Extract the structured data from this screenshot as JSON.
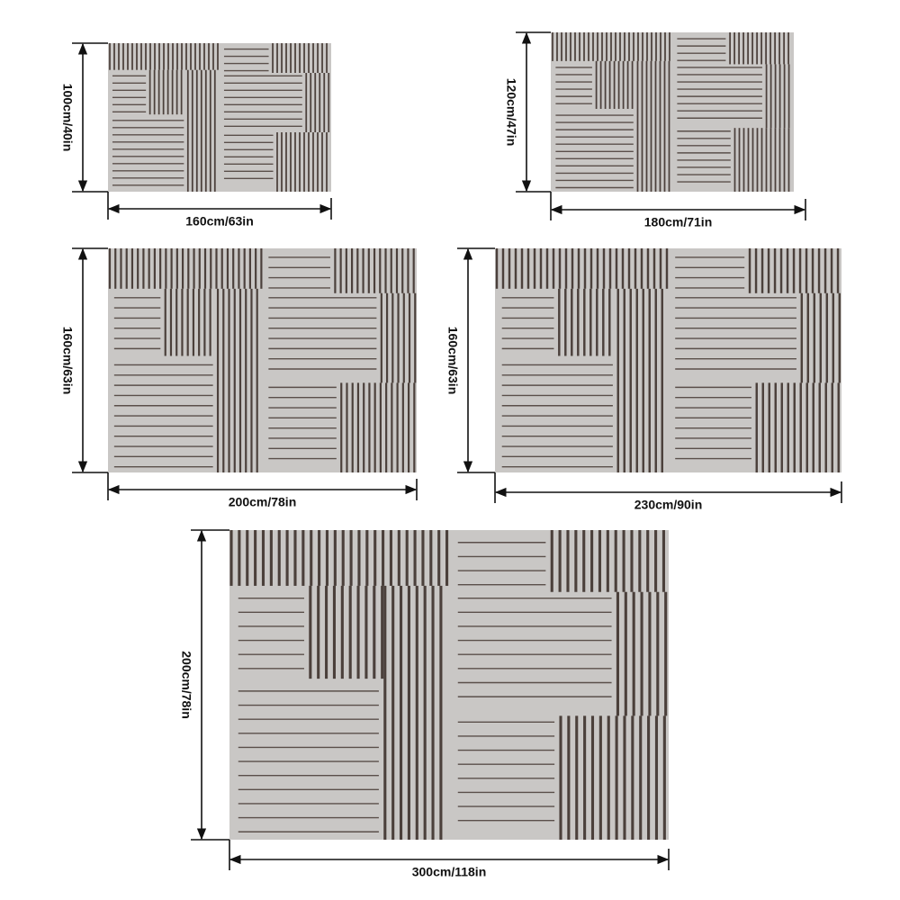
{
  "rugs": [
    {
      "height": "100cm/40in",
      "width": "160cm/63in"
    },
    {
      "height": "120cm/47in",
      "width": "180cm/71in"
    },
    {
      "height": "160cm/63in",
      "width": "200cm/78in"
    },
    {
      "height": "160cm/63in",
      "width": "230cm/90in"
    },
    {
      "height": "200cm/78in",
      "width": "300cm/118in"
    }
  ]
}
